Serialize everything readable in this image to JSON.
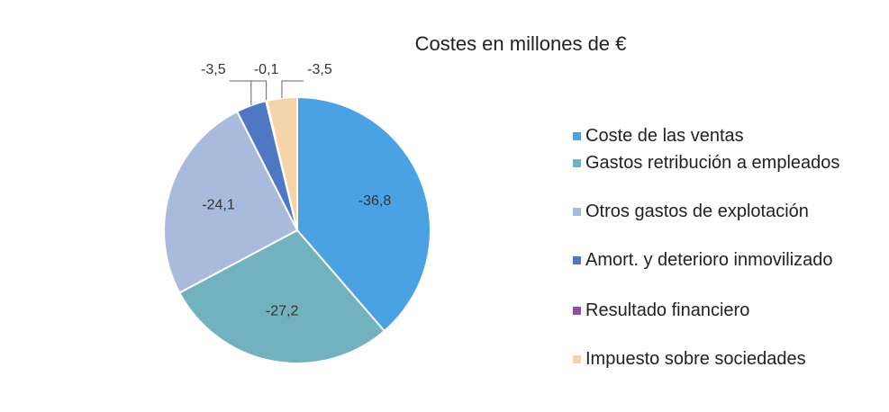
{
  "chart_data": {
    "type": "pie",
    "title": "Costes en millones de €",
    "categories": [
      "Coste de las ventas",
      "Gastos retribución a empleados",
      "Otros gastos de explotación",
      "Amort. y deterioro inmovilizado",
      "Resultado financiero",
      "Impuesto sobre sociedades"
    ],
    "values": [
      -36.8,
      -27.2,
      -24.1,
      -3.5,
      -0.1,
      -3.5
    ],
    "value_labels": [
      "-36,8",
      "-27,2",
      "-24,1",
      "-3,5",
      "-0,1",
      "-3,5"
    ],
    "colors": [
      "#4aa2e2",
      "#72b2bf",
      "#a8bbdc",
      "#4f78c4",
      "#8e4fa8",
      "#f5d4aa"
    ],
    "legend": "right"
  }
}
